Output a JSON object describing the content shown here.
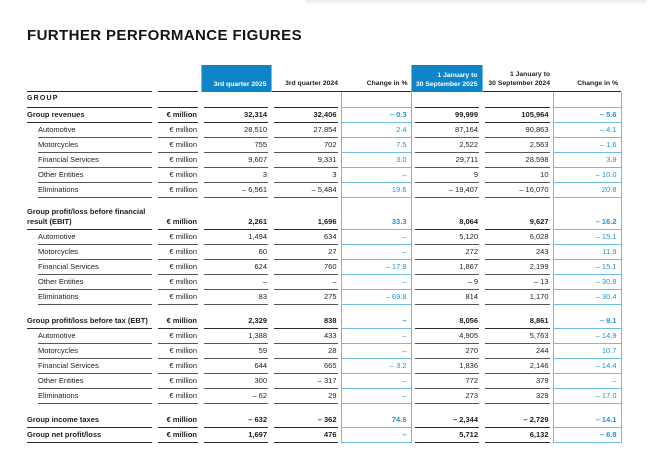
{
  "page": {
    "title": "FURTHER PERFORMANCE FIGURES"
  },
  "colors": {
    "accent_blue": "#0d85c8",
    "value_blue": "#1f93d2",
    "rule_blue": "#6ebde6",
    "rule_dark": "#2b2b2b",
    "rule_gray": "#55555a"
  },
  "table": {
    "unit_label": "€ million",
    "section_label": "GROUP",
    "headers": [
      {
        "lines": [
          "3rd quarter 2025"
        ],
        "highlighted": true
      },
      {
        "lines": [
          "3rd quarter 2024"
        ],
        "highlighted": false
      },
      {
        "lines": [
          "Change in %"
        ],
        "highlighted": false
      },
      {
        "lines": [
          "1 January to",
          "30 September 2025"
        ],
        "highlighted": true
      },
      {
        "lines": [
          "1 January to",
          "30 September 2024"
        ],
        "highlighted": false
      },
      {
        "lines": [
          "Change in %"
        ],
        "highlighted": false
      }
    ],
    "rows": [
      {
        "label": "Group revenues",
        "bold": true,
        "indent": false,
        "values": [
          "32,314",
          "32,406",
          "– 0.3",
          "99,999",
          "105,964",
          "– 5.6"
        ]
      },
      {
        "label": "Automotive",
        "bold": false,
        "indent": true,
        "values": [
          "28,510",
          "27,854",
          "2.4",
          "87,164",
          "90,863",
          "– 4.1"
        ]
      },
      {
        "label": "Motorcycles",
        "bold": false,
        "indent": true,
        "values": [
          "755",
          "702",
          "7.5",
          "2,522",
          "2,563",
          "– 1.6"
        ]
      },
      {
        "label": "Financial Services",
        "bold": false,
        "indent": true,
        "values": [
          "9,607",
          "9,331",
          "3.0",
          "29,711",
          "28,598",
          "3.9"
        ]
      },
      {
        "label": "Other Entities",
        "bold": false,
        "indent": true,
        "values": [
          "3",
          "3",
          "–",
          "9",
          "10",
          "– 10.0"
        ]
      },
      {
        "label": "Eliminations",
        "bold": false,
        "indent": true,
        "values": [
          "– 6,561",
          "– 5,484",
          "19.6",
          "– 19,407",
          "– 16,070",
          "20.8"
        ]
      },
      {
        "spacer": true
      },
      {
        "label": "Group profit/loss before financial result (EBIT)",
        "bold": true,
        "indent": false,
        "tall": true,
        "values": [
          "2,261",
          "1,696",
          "33.3",
          "8,064",
          "9,627",
          "– 16.2"
        ]
      },
      {
        "label": "Automotive",
        "bold": false,
        "indent": true,
        "values": [
          "1,494",
          "634",
          "–",
          "5,120",
          "6,028",
          "– 15.1"
        ]
      },
      {
        "label": "Motorcycles",
        "bold": false,
        "indent": true,
        "values": [
          "60",
          "27",
          "–",
          "272",
          "243",
          "11.9"
        ]
      },
      {
        "label": "Financial Services",
        "bold": false,
        "indent": true,
        "values": [
          "624",
          "760",
          "– 17.9",
          "1,867",
          "2,199",
          "– 15.1"
        ]
      },
      {
        "label": "Other Entities",
        "bold": false,
        "indent": true,
        "values": [
          "–",
          "–",
          "–",
          "– 9",
          "– 13",
          "– 30.8"
        ]
      },
      {
        "label": "Eliminations",
        "bold": false,
        "indent": true,
        "values": [
          "83",
          "275",
          "– 69.8",
          "814",
          "1,170",
          "– 30.4"
        ]
      },
      {
        "spacer": true
      },
      {
        "label": "Group profit/loss before tax (EBT)",
        "bold": true,
        "indent": false,
        "values": [
          "2,329",
          "838",
          "–",
          "8,056",
          "8,861",
          "– 9.1"
        ]
      },
      {
        "label": "Automotive",
        "bold": false,
        "indent": true,
        "values": [
          "1,388",
          "433",
          "–",
          "4,905",
          "5,763",
          "– 14.9"
        ]
      },
      {
        "label": "Motorcycles",
        "bold": false,
        "indent": true,
        "values": [
          "59",
          "28",
          "–",
          "270",
          "244",
          "10.7"
        ]
      },
      {
        "label": "Financial Services",
        "bold": false,
        "indent": true,
        "values": [
          "644",
          "665",
          "– 3.2",
          "1,836",
          "2,146",
          "– 14.4"
        ]
      },
      {
        "label": "Other Entities",
        "bold": false,
        "indent": true,
        "values": [
          "300",
          "– 317",
          "–",
          "772",
          "379",
          "–"
        ]
      },
      {
        "label": "Eliminations",
        "bold": false,
        "indent": true,
        "values": [
          "– 62",
          "29",
          "–",
          "273",
          "329",
          "– 17.0"
        ]
      },
      {
        "spacer": true
      },
      {
        "label": "Group income taxes",
        "bold": true,
        "indent": false,
        "values": [
          "– 632",
          "– 362",
          "74.6",
          "– 2,344",
          "– 2,729",
          "– 14.1"
        ]
      },
      {
        "label": "Group net profit/loss",
        "bold": true,
        "indent": false,
        "values": [
          "1,697",
          "476",
          "–",
          "5,712",
          "6,132",
          "– 6.8"
        ]
      }
    ]
  }
}
